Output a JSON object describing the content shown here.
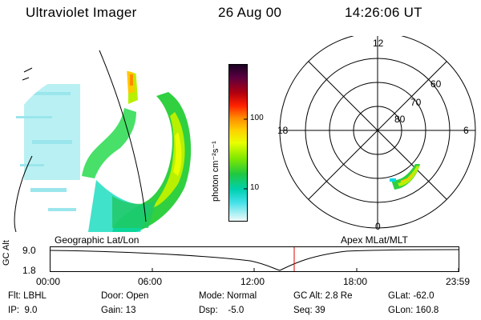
{
  "header": {
    "title": "Ultraviolet Imager",
    "date": "26 Aug 00",
    "time": "14:26:06 UT"
  },
  "colorbar": {
    "label": "photon cm⁻²s⁻¹",
    "ticks": [
      "100",
      "10"
    ],
    "colors": [
      "#1a0022",
      "#3a0040",
      "#6a0040",
      "#a00018",
      "#d00000",
      "#ff3a00",
      "#ff8a00",
      "#ffc800",
      "#e8ff00",
      "#b8f000",
      "#68e000",
      "#20c830",
      "#00c8a0",
      "#00d8e8",
      "#88eef0",
      "#e8f8f8"
    ]
  },
  "left_panel": {
    "caption": "Geographic Lat/Lon"
  },
  "right_panel": {
    "caption": "Apex MLat/MLT",
    "mlt_labels": [
      "12",
      "18",
      "6",
      "0"
    ],
    "lat_labels": [
      "60",
      "70",
      "80"
    ]
  },
  "altitude_plot": {
    "ylabel": "GC Alt",
    "yticks": [
      "9.0",
      "1.8"
    ],
    "xticks": [
      "00:00",
      "06:00",
      "12:00",
      "18:00",
      "23:59"
    ],
    "marker_color": "#e00000"
  },
  "info": {
    "flt": "Flt: LBHL",
    "ip": "IP:  9.0",
    "door": "Door: Open",
    "gain": "Gain: 13",
    "mode": "Mode: Normal",
    "dsp": "Dsp:    -5.0",
    "gcalt": "GC Alt: 2.8 Re",
    "seq": "Seq: 39",
    "glat": "GLat: -62.0",
    "glon": "GLon: 160.8"
  }
}
